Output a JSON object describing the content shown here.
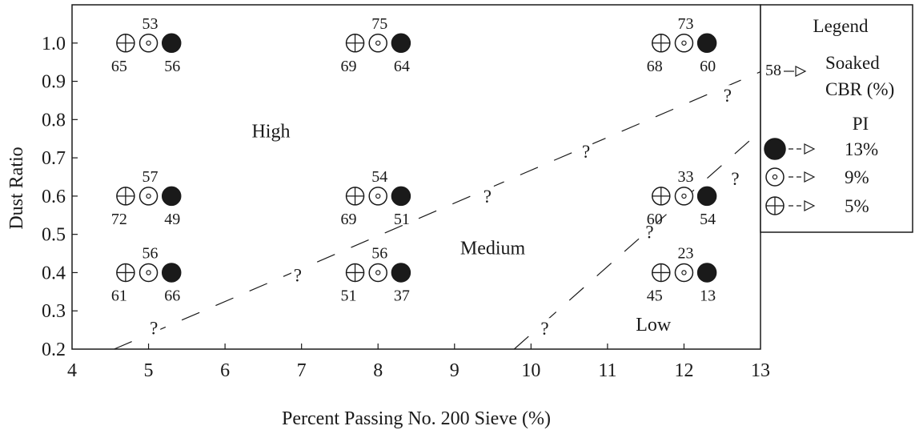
{
  "chart_data": {
    "type": "scatter",
    "xlabel": "Percent Passing No. 200 Sieve (%)",
    "ylabel": "Dust Ratio",
    "xlim": [
      4,
      13
    ],
    "ylim": [
      0.2,
      1.1
    ],
    "xticks": [
      "4",
      "5",
      "6",
      "7",
      "8",
      "9",
      "10",
      "11",
      "12",
      "13"
    ],
    "yticks": [
      "0.2",
      "0.3",
      "0.4",
      "0.5",
      "0.6",
      "0.7",
      "0.8",
      "0.9",
      "1.0"
    ],
    "grid": false,
    "series": [
      {
        "name": "13%",
        "marker": "filled-circle",
        "points": [
          {
            "x": 5.3,
            "y": 1.0,
            "cbr": "56"
          },
          {
            "x": 8.3,
            "y": 1.0,
            "cbr": "64"
          },
          {
            "x": 12.3,
            "y": 1.0,
            "cbr": "60"
          },
          {
            "x": 5.3,
            "y": 0.6,
            "cbr": "49"
          },
          {
            "x": 8.3,
            "y": 0.6,
            "cbr": "51"
          },
          {
            "x": 12.3,
            "y": 0.6,
            "cbr": "54"
          },
          {
            "x": 5.3,
            "y": 0.4,
            "cbr": "66"
          },
          {
            "x": 8.3,
            "y": 0.4,
            "cbr": "37"
          },
          {
            "x": 12.3,
            "y": 0.4,
            "cbr": "13"
          }
        ]
      },
      {
        "name": "9%",
        "marker": "dot-circle",
        "points": [
          {
            "x": 5.0,
            "y": 1.0,
            "cbr": "53"
          },
          {
            "x": 8.0,
            "y": 1.0,
            "cbr": "75"
          },
          {
            "x": 12.0,
            "y": 1.0,
            "cbr": "73"
          },
          {
            "x": 5.0,
            "y": 0.6,
            "cbr": "57"
          },
          {
            "x": 8.0,
            "y": 0.6,
            "cbr": "54"
          },
          {
            "x": 12.0,
            "y": 0.6,
            "cbr": "33"
          },
          {
            "x": 5.0,
            "y": 0.4,
            "cbr": "56"
          },
          {
            "x": 8.0,
            "y": 0.4,
            "cbr": "56"
          },
          {
            "x": 12.0,
            "y": 0.4,
            "cbr": "23"
          }
        ]
      },
      {
        "name": "5%",
        "marker": "cross-circle",
        "points": [
          {
            "x": 4.7,
            "y": 1.0,
            "cbr": "65"
          },
          {
            "x": 7.7,
            "y": 1.0,
            "cbr": "69"
          },
          {
            "x": 11.7,
            "y": 1.0,
            "cbr": "68"
          },
          {
            "x": 4.7,
            "y": 0.6,
            "cbr": "72"
          },
          {
            "x": 7.7,
            "y": 0.6,
            "cbr": "69"
          },
          {
            "x": 11.7,
            "y": 0.6,
            "cbr": "60"
          },
          {
            "x": 4.7,
            "y": 0.4,
            "cbr": "61"
          },
          {
            "x": 7.7,
            "y": 0.4,
            "cbr": "51"
          },
          {
            "x": 11.7,
            "y": 0.4,
            "cbr": "45"
          }
        ]
      }
    ],
    "boundaries": [
      {
        "points": [
          [
            4.55,
            0.2
          ],
          [
            13.0,
            0.925
          ]
        ]
      },
      {
        "points": [
          [
            9.78,
            0.2
          ],
          [
            13.0,
            0.77
          ]
        ]
      }
    ],
    "question_marks": [
      {
        "x": 5.07,
        "y": 0.255
      },
      {
        "x": 6.95,
        "y": 0.394
      },
      {
        "x": 9.43,
        "y": 0.6
      },
      {
        "x": 10.72,
        "y": 0.717
      },
      {
        "x": 12.57,
        "y": 0.863
      },
      {
        "x": 10.18,
        "y": 0.254
      },
      {
        "x": 11.55,
        "y": 0.507
      },
      {
        "x": 12.67,
        "y": 0.646
      }
    ],
    "question_mark_text": "?",
    "regions": [
      {
        "label": "High",
        "x": 6.6,
        "y": 0.77
      },
      {
        "label": "Medium",
        "x": 9.5,
        "y": 0.465
      },
      {
        "label": "Low",
        "x": 11.6,
        "y": 0.265
      }
    ],
    "legend": {
      "position": "right",
      "title": "Legend",
      "cbr_value": "58",
      "cbr_label_line1": "Soaked",
      "cbr_label_line2": "CBR (%)",
      "pi_title": "PI",
      "items": [
        "13%",
        "9%",
        "5%"
      ]
    }
  }
}
